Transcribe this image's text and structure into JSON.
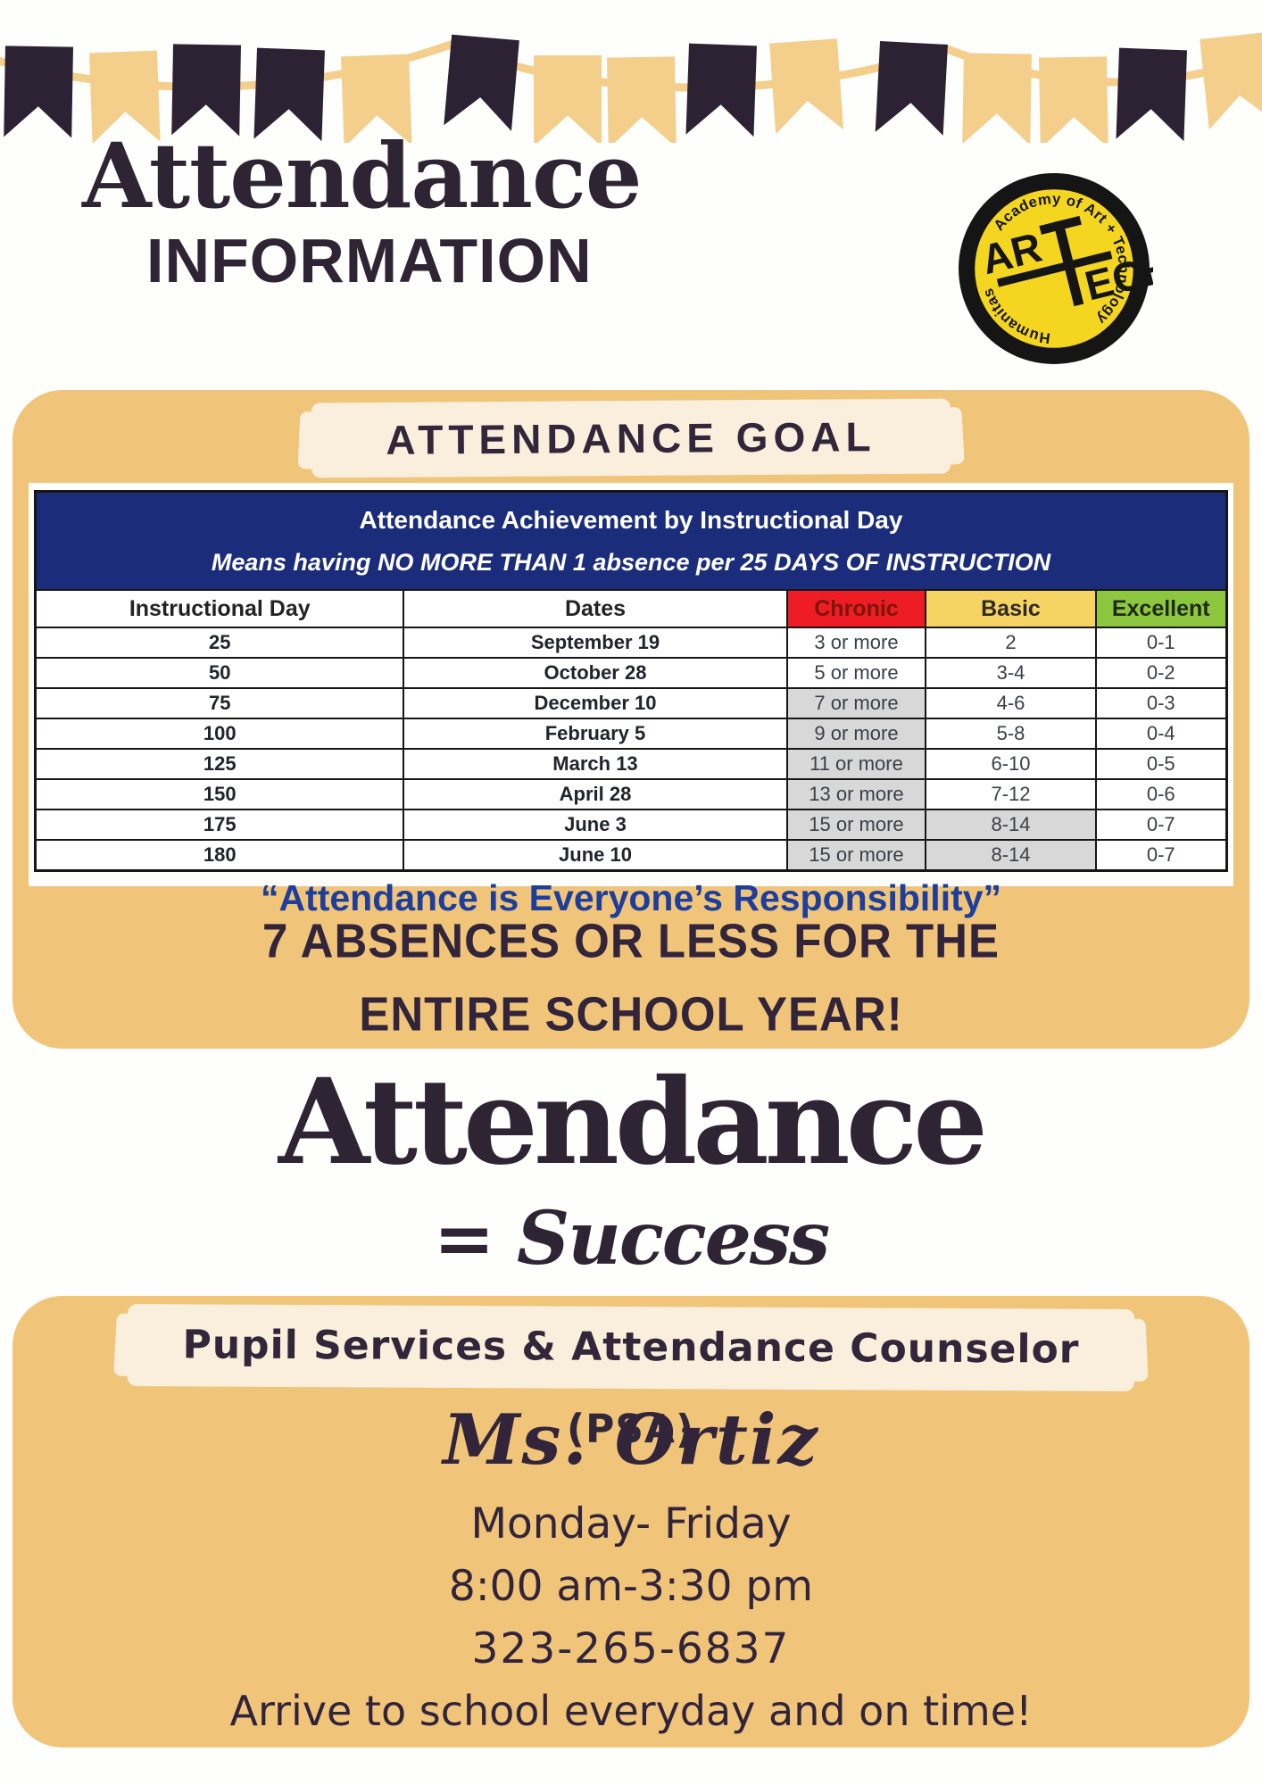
{
  "colors": {
    "panel_orange": "#f0c57a",
    "brush_cream": "#f9efdc",
    "flag_dark": "#2d2233",
    "flag_tan": "#f3cf8b",
    "table_header_navy": "#1b2d7a",
    "chronic_red": "#ee1c24",
    "basic_gold": "#f6d464",
    "excellent_green": "#8dc63f",
    "shaded_gray": "#d8d8d8",
    "quote_blue": "#1d3e9c",
    "ink": "#2f2433",
    "logo_yellow": "#f4d520",
    "logo_black": "#151515"
  },
  "banner": {
    "flags": [
      "dark",
      "tan",
      "dark",
      "dark",
      "tan",
      "dark",
      "tan",
      "tan",
      "dark",
      "tan",
      "dark",
      "tan",
      "tan",
      "dark",
      "tan"
    ]
  },
  "header": {
    "title_line1": "Attendance",
    "title_line2": "INFORMATION"
  },
  "logo": {
    "ring_text_main": "Academy of Art + Technology",
    "ring_text_secondary": "Humanitas",
    "mark_ar": "AR",
    "mark_t": "T",
    "mark_ech": "ECH"
  },
  "goal_section": {
    "heading": "ATTENDANCE GOAL",
    "table": {
      "title": "Attendance Achievement by Instructional Day",
      "subtitle": "Means having NO MORE THAN 1 absence per 25 DAYS OF INSTRUCTION",
      "columns": [
        "Instructional Day",
        "Dates",
        "Chronic",
        "Basic",
        "Excellent"
      ],
      "rows": [
        {
          "day": "25",
          "date": "September 19",
          "chronic": "3 or more",
          "basic": "2",
          "excellent": "0-1",
          "chronic_shaded": false,
          "basic_shaded": false
        },
        {
          "day": "50",
          "date": "October 28",
          "chronic": "5 or more",
          "basic": "3-4",
          "excellent": "0-2",
          "chronic_shaded": false,
          "basic_shaded": false
        },
        {
          "day": "75",
          "date": "December 10",
          "chronic": "7 or more",
          "basic": "4-6",
          "excellent": "0-3",
          "chronic_shaded": true,
          "basic_shaded": false
        },
        {
          "day": "100",
          "date": "February 5",
          "chronic": "9 or more",
          "basic": "5-8",
          "excellent": "0-4",
          "chronic_shaded": true,
          "basic_shaded": false
        },
        {
          "day": "125",
          "date": "March 13",
          "chronic": "11 or more",
          "basic": "6-10",
          "excellent": "0-5",
          "chronic_shaded": true,
          "basic_shaded": false
        },
        {
          "day": "150",
          "date": "April 28",
          "chronic": "13 or more",
          "basic": "7-12",
          "excellent": "0-6",
          "chronic_shaded": true,
          "basic_shaded": false
        },
        {
          "day": "175",
          "date": "June 3",
          "chronic": "15 or more",
          "basic": "8-14",
          "excellent": "0-7",
          "chronic_shaded": true,
          "basic_shaded": true
        },
        {
          "day": "180",
          "date": "June 10",
          "chronic": "15 or more",
          "basic": "8-14",
          "excellent": "0-7",
          "chronic_shaded": true,
          "basic_shaded": true
        }
      ]
    },
    "quote": "“Attendance is Everyone’s Responsibility”",
    "callout_line1": "7 ABSENCES OR LESS FOR THE",
    "callout_line2": "ENTIRE SCHOOL YEAR!"
  },
  "equation": {
    "word": "Attendance",
    "equals": "= Success"
  },
  "psa_section": {
    "heading": "Pupil Services & Attendance Counselor (PSA)",
    "name": "Ms. Ortiz",
    "days": "Monday- Friday",
    "hours": "8:00 am-3:30 pm",
    "phone": "323-265-6837",
    "message": "Arrive to school everyday and on time!"
  }
}
